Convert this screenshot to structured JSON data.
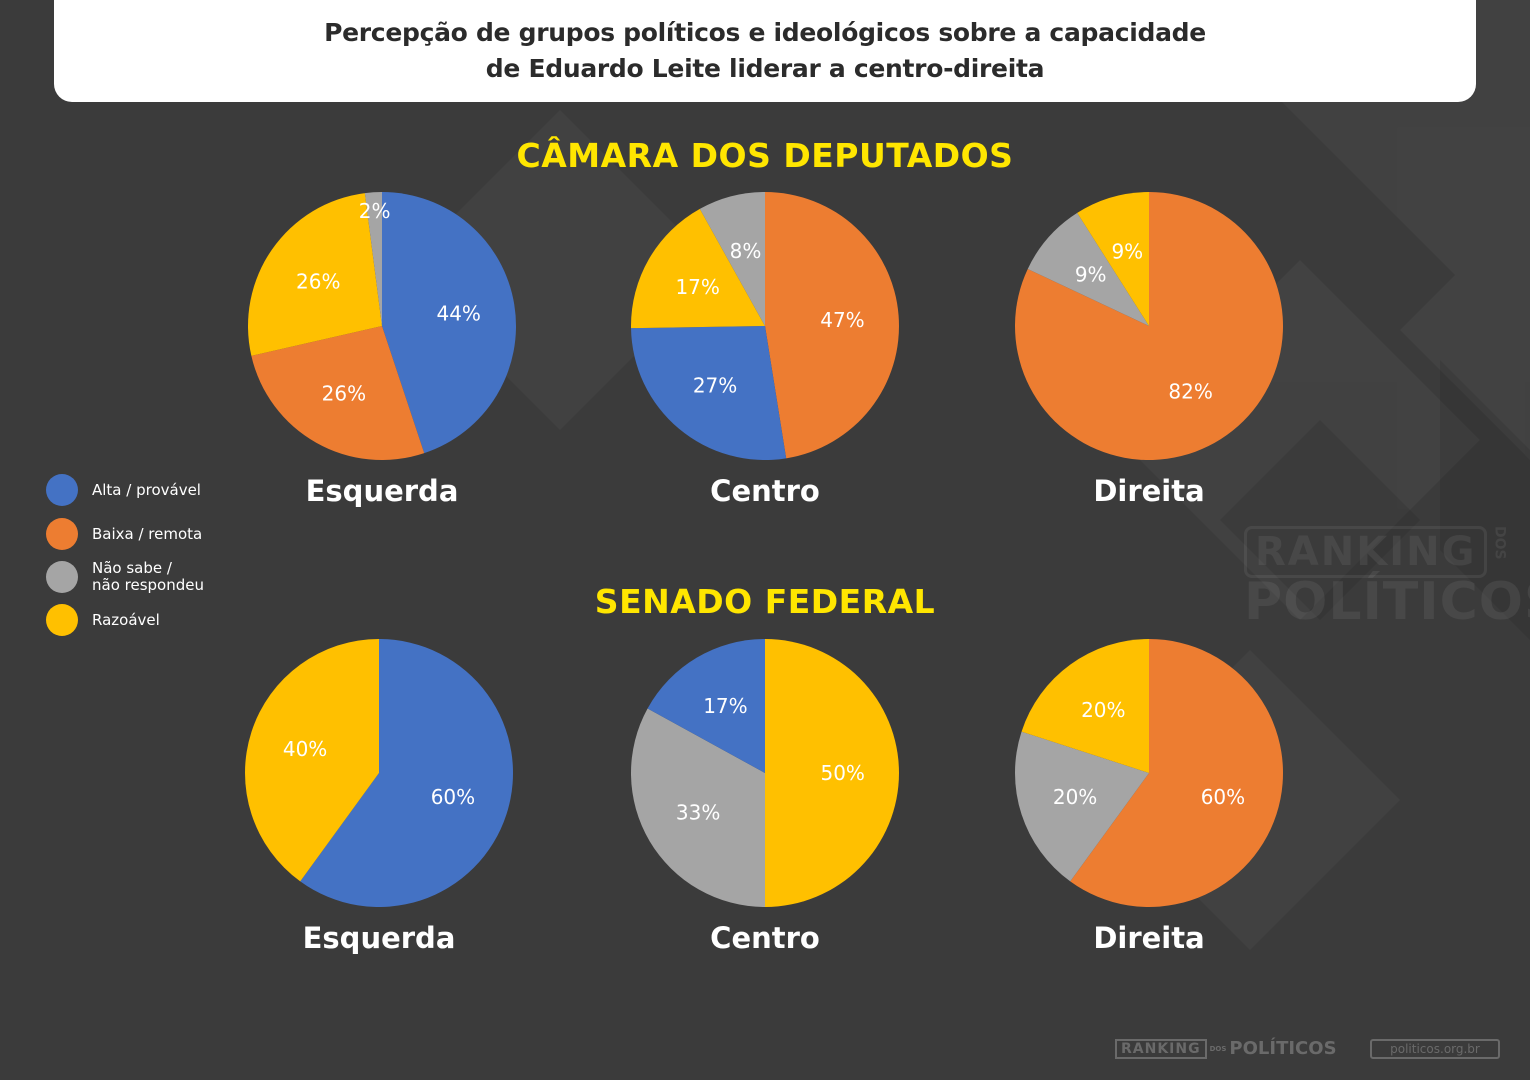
{
  "header": {
    "title_line1": "Percepção de grupos políticos e ideológicos sobre a capacidade",
    "title_line2": "de Eduardo Leite liderar a centro-direita"
  },
  "sections": {
    "camara": "CÂMARA DOS DEPUTADOS",
    "senado": "SENADO FEDERAL"
  },
  "legend": [
    {
      "label": "Alta / provável",
      "color": "#4472c4"
    },
    {
      "label": "Baixa / remota",
      "color": "#ed7d31"
    },
    {
      "label": "Não sabe /\nnão respondeu",
      "color": "#a5a5a5"
    },
    {
      "label": "Razoável",
      "color": "#ffc000"
    }
  ],
  "watermark": {
    "line1": "RANKING",
    "dos": "DOS",
    "line2": "POLÍTICOS"
  },
  "footer": {
    "logo_left": "RANKING",
    "logo_dos": "DOS",
    "logo_right": "POLÍTICOS",
    "url": "politicos.org.br"
  },
  "chart_data": [
    {
      "type": "pie",
      "group": "CÂMARA DOS DEPUTADOS",
      "title": "Esquerda",
      "slices": [
        {
          "label": "Alta / provável",
          "value": 44,
          "display": "44%",
          "color": "#4472c4"
        },
        {
          "label": "Baixa / remota",
          "value": 26,
          "display": "26%",
          "color": "#ed7d31"
        },
        {
          "label": "Razoável",
          "value": 26,
          "display": "26%",
          "color": "#ffc000"
        },
        {
          "label": "Não sabe / não respondeu",
          "value": 2,
          "display": "2%",
          "color": "#a5a5a5"
        }
      ]
    },
    {
      "type": "pie",
      "group": "CÂMARA DOS DEPUTADOS",
      "title": "Centro",
      "slices": [
        {
          "label": "Baixa / remota",
          "value": 47,
          "display": "47%",
          "color": "#ed7d31"
        },
        {
          "label": "Alta / provável",
          "value": 27,
          "display": "27%",
          "color": "#4472c4"
        },
        {
          "label": "Razoável",
          "value": 17,
          "display": "17%",
          "color": "#ffc000"
        },
        {
          "label": "Não sabe / não respondeu",
          "value": 8,
          "display": "8%",
          "color": "#a5a5a5"
        }
      ]
    },
    {
      "type": "pie",
      "group": "CÂMARA DOS DEPUTADOS",
      "title": "Direita",
      "slices": [
        {
          "label": "Baixa / remota",
          "value": 82,
          "display": "82%",
          "color": "#ed7d31"
        },
        {
          "label": "Não sabe / não respondeu",
          "value": 9,
          "display": "9%",
          "color": "#a5a5a5"
        },
        {
          "label": "Razoável",
          "value": 9,
          "display": "9%",
          "color": "#ffc000"
        }
      ]
    },
    {
      "type": "pie",
      "group": "SENADO FEDERAL",
      "title": "Esquerda",
      "slices": [
        {
          "label": "Alta / provável",
          "value": 60,
          "display": "60%",
          "color": "#4472c4"
        },
        {
          "label": "Razoável",
          "value": 40,
          "display": "40%",
          "color": "#ffc000"
        }
      ]
    },
    {
      "type": "pie",
      "group": "SENADO FEDERAL",
      "title": "Centro",
      "slices": [
        {
          "label": "Razoável",
          "value": 50,
          "display": "50%",
          "color": "#ffc000"
        },
        {
          "label": "Não sabe / não respondeu",
          "value": 33,
          "display": "33%",
          "color": "#a5a5a5"
        },
        {
          "label": "Alta / provável",
          "value": 17,
          "display": "17%",
          "color": "#4472c4"
        }
      ]
    },
    {
      "type": "pie",
      "group": "SENADO FEDERAL",
      "title": "Direita",
      "slices": [
        {
          "label": "Baixa / remota",
          "value": 60,
          "display": "60%",
          "color": "#ed7d31"
        },
        {
          "label": "Não sabe / não respondeu",
          "value": 20,
          "display": "20%",
          "color": "#a5a5a5"
        },
        {
          "label": "Razoável",
          "value": 20,
          "display": "20%",
          "color": "#ffc000"
        }
      ]
    }
  ]
}
